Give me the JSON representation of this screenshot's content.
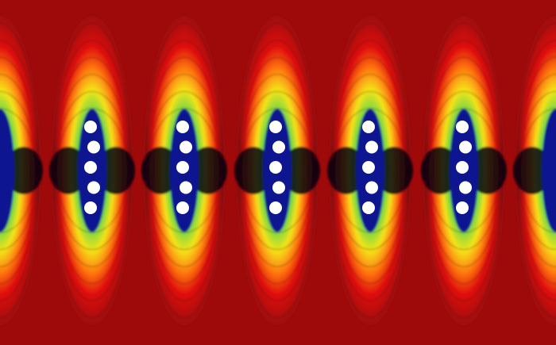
{
  "image": {
    "columns": 7,
    "dots_per_column": 5,
    "colors": {
      "background": "#9e0a0a",
      "outer_red": "#e01010",
      "orange": "#ff7a10",
      "yellow": "#f4e418",
      "green": "#6ed64a",
      "cyan": "#18c8d8",
      "blue": "#1848d8",
      "deep_blue": "#0a1490",
      "dark_core": "#060610",
      "dot": "#ffffff",
      "contour": "#2a0000"
    }
  }
}
